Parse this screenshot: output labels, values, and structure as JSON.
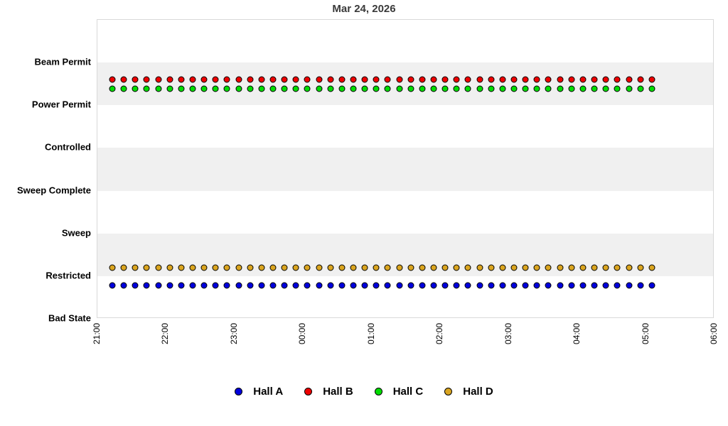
{
  "title": "Mar 24, 2026",
  "chart_data": {
    "type": "scatter",
    "title": "Mar 24, 2026",
    "x_axis": {
      "tick_labels": [
        "21:00",
        "22:00",
        "23:00",
        "00:00",
        "01:00",
        "02:00",
        "03:00",
        "04:00",
        "05:00",
        "06:00"
      ],
      "range_hours": [
        21,
        30
      ],
      "tick_rotation_degrees": 90
    },
    "y_axis": {
      "tick_labels": [
        "Beam Permit",
        "Power Permit",
        "Controlled",
        "Sweep Complete",
        "Sweep",
        "Restricted",
        "Bad State"
      ]
    },
    "grid": {
      "shaded_band_rows": [
        1,
        3,
        5
      ],
      "shade_color": "#f0f0f0",
      "border_color": "#d9d9d9",
      "background": "#ffffff"
    },
    "sampling": {
      "start_time": "21:14",
      "end_time": "05:05",
      "interval_minutes": 10,
      "points_per_series": 48
    },
    "x_start_hour": 21.228,
    "x_step_hour": 0.1674,
    "series": [
      {
        "name": "Hall A",
        "color": "#0000dd",
        "state": "Restricted",
        "level_position": 5.235,
        "values_constant": true
      },
      {
        "name": "Hall B",
        "color": "#ee0000",
        "state": "Beam Permit",
        "level_position": 0.413,
        "values_constant": true
      },
      {
        "name": "Hall C",
        "color": "#00dd00",
        "state": "Beam Permit",
        "level_position": 0.63,
        "values_constant": true
      },
      {
        "name": "Hall D",
        "color": "#daa520",
        "state": "Restricted",
        "level_position": 4.82,
        "values_constant": true
      }
    ],
    "legend": {
      "position": "bottom-center",
      "items": [
        {
          "label": "Hall A",
          "color": "#0000dd"
        },
        {
          "label": "Hall B",
          "color": "#ee0000"
        },
        {
          "label": "Hall C",
          "color": "#00dd00"
        },
        {
          "label": "Hall D",
          "color": "#daa520"
        }
      ]
    }
  }
}
